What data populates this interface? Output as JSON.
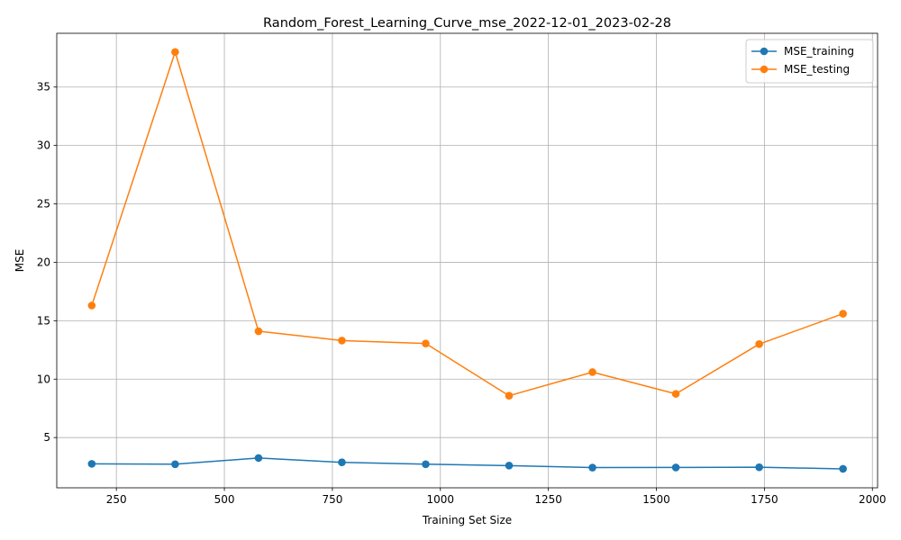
{
  "chart_data": {
    "type": "line",
    "title": "Random_Forest_Learning_Curve_mse_2022-12-01_2023-02-28",
    "xlabel": "Training Set Size",
    "ylabel": "MSE",
    "xlim": [
      112,
      2012
    ],
    "ylim": [
      0.7,
      39.6
    ],
    "xticks": [
      250,
      500,
      750,
      1000,
      1250,
      1500,
      1750,
      2000
    ],
    "yticks": [
      5,
      10,
      15,
      20,
      25,
      30,
      35
    ],
    "grid": true,
    "legend_position": "top-right",
    "x": [
      193,
      386,
      579,
      772,
      966,
      1159,
      1352,
      1545,
      1738,
      1932
    ],
    "series": [
      {
        "name": "MSE_training",
        "color": "#1f77b4",
        "values": [
          2.75,
          2.72,
          3.25,
          2.88,
          2.72,
          2.6,
          2.43,
          2.44,
          2.46,
          2.32
        ]
      },
      {
        "name": "MSE_testing",
        "color": "#ff7f0e",
        "values": [
          16.3,
          38.0,
          14.1,
          13.3,
          13.05,
          8.58,
          10.6,
          8.74,
          13.0,
          15.6
        ]
      }
    ]
  }
}
